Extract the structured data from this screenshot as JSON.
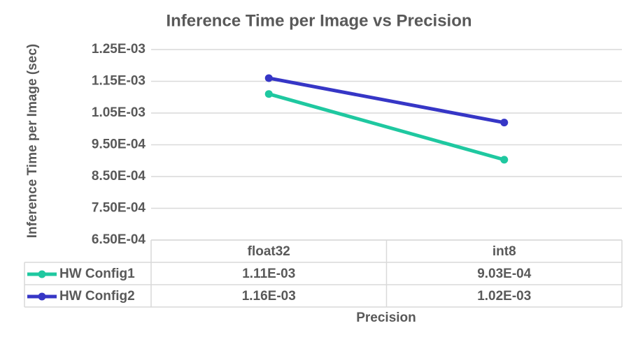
{
  "chart_data": {
    "type": "line",
    "title": "Inference Time per Image vs Precision",
    "x_label": "Precision",
    "y_label": "Inference Time per Image (sec)",
    "categories": [
      "float32",
      "int8"
    ],
    "series": [
      {
        "name": "HW Config1",
        "color": "#1fc8a0",
        "values": [
          0.00111,
          0.000903
        ],
        "value_labels": [
          "1.11E-03",
          "9.03E-04"
        ]
      },
      {
        "name": "HW Config2",
        "color": "#3636c6",
        "values": [
          0.00116,
          0.00102
        ],
        "value_labels": [
          "1.16E-03",
          "1.02E-03"
        ]
      }
    ],
    "ylim": [
      0.00065,
      0.00125
    ],
    "yticks": [
      {
        "value": 0.00065,
        "label": "6.50E-04"
      },
      {
        "value": 0.00075,
        "label": "7.50E-04"
      },
      {
        "value": 0.00085,
        "label": "8.50E-04"
      },
      {
        "value": 0.00095,
        "label": "9.50E-04"
      },
      {
        "value": 0.00105,
        "label": "1.05E-03"
      },
      {
        "value": 0.00115,
        "label": "1.15E-03"
      },
      {
        "value": 0.00125,
        "label": "1.25E-03"
      }
    ],
    "grid": true,
    "data_table": true
  }
}
